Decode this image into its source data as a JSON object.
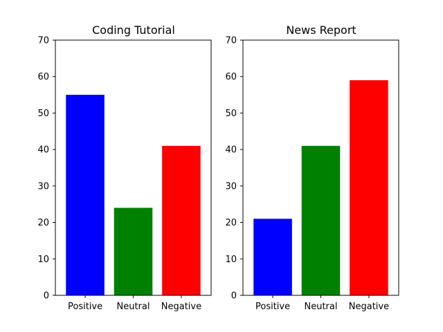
{
  "chart_data": [
    {
      "type": "bar",
      "title": "Coding Tutorial",
      "xlabel": "",
      "ylabel": "",
      "categories": [
        "Positive",
        "Neutral",
        "Negative"
      ],
      "values": [
        55,
        24,
        41
      ],
      "colors": [
        "#0000ff",
        "#008000",
        "#ff0000"
      ],
      "ylim": [
        0,
        70
      ],
      "yticks": [
        0,
        10,
        20,
        30,
        40,
        50,
        60,
        70
      ],
      "grid": false
    },
    {
      "type": "bar",
      "title": "News Report",
      "xlabel": "",
      "ylabel": "",
      "categories": [
        "Positive",
        "Neutral",
        "Negative"
      ],
      "values": [
        21,
        41,
        59
      ],
      "colors": [
        "#0000ff",
        "#008000",
        "#ff0000"
      ],
      "ylim": [
        0,
        70
      ],
      "yticks": [
        0,
        10,
        20,
        30,
        40,
        50,
        60,
        70
      ],
      "grid": false
    }
  ]
}
